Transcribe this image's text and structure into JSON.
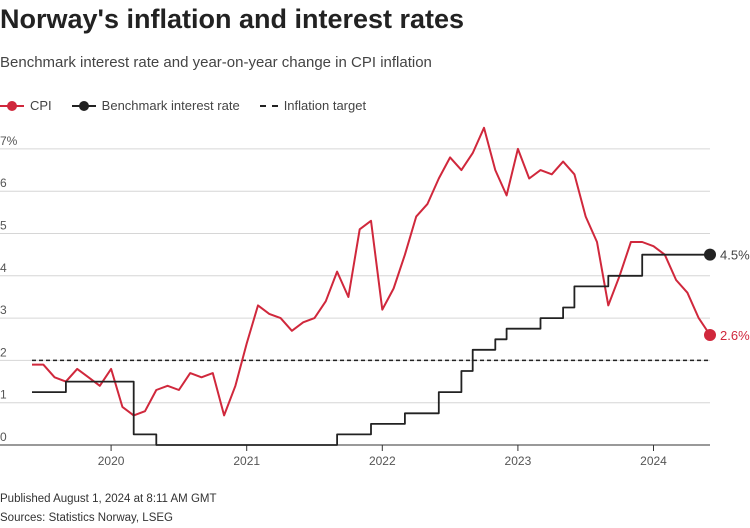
{
  "header": {
    "title": "Norway's inflation and interest rates",
    "subtitle": "Benchmark interest rate and year-on-year change in CPI inflation"
  },
  "legend": {
    "cpi": "CPI",
    "rate": "Benchmark interest rate",
    "target": "Inflation target"
  },
  "colors": {
    "cpi": "#d0283c",
    "rate": "#222222",
    "target": "#222222",
    "grid": "#d6d6d6",
    "label": "#555555"
  },
  "footer": {
    "published": "Published August 1, 2024 at 8:11 AM GMT",
    "sources": "Sources: Statistics Norway, LSEG"
  },
  "chart_data": {
    "type": "line",
    "title": "Norway's inflation and interest rates",
    "subtitle": "Benchmark interest rate and year-on-year change in CPI inflation",
    "xlabel": "",
    "ylabel": "",
    "xlim": [
      "2019-06",
      "2024-06"
    ],
    "ylim": [
      0,
      7
    ],
    "y_ticks": [
      0,
      1,
      2,
      3,
      4,
      5,
      6,
      7
    ],
    "y_tick_labels": [
      "0",
      "1",
      "2",
      "3",
      "4",
      "5",
      "6",
      "7%"
    ],
    "x_ticks": [
      "2020-01",
      "2021-01",
      "2022-01",
      "2023-01",
      "2024-01"
    ],
    "x_tick_labels": [
      "2020",
      "2021",
      "2022",
      "2023",
      "2024"
    ],
    "grid": true,
    "legend_position": "top-left",
    "reference_lines": [
      {
        "name": "Inflation target",
        "y": 2,
        "style": "dashed"
      }
    ],
    "end_labels": {
      "Benchmark interest rate": "4.5%",
      "CPI": "2.6%"
    },
    "series": [
      {
        "name": "CPI",
        "style": "line",
        "x": [
          "2019-06",
          "2019-07",
          "2019-08",
          "2019-09",
          "2019-10",
          "2019-11",
          "2019-12",
          "2020-01",
          "2020-02",
          "2020-03",
          "2020-04",
          "2020-05",
          "2020-06",
          "2020-07",
          "2020-08",
          "2020-09",
          "2020-10",
          "2020-11",
          "2020-12",
          "2021-01",
          "2021-02",
          "2021-03",
          "2021-04",
          "2021-05",
          "2021-06",
          "2021-07",
          "2021-08",
          "2021-09",
          "2021-10",
          "2021-11",
          "2021-12",
          "2022-01",
          "2022-02",
          "2022-03",
          "2022-04",
          "2022-05",
          "2022-06",
          "2022-07",
          "2022-08",
          "2022-09",
          "2022-10",
          "2022-11",
          "2022-12",
          "2023-01",
          "2023-02",
          "2023-03",
          "2023-04",
          "2023-05",
          "2023-06",
          "2023-07",
          "2023-08",
          "2023-09",
          "2023-10",
          "2023-11",
          "2023-12",
          "2024-01",
          "2024-02",
          "2024-03",
          "2024-04",
          "2024-05",
          "2024-06"
        ],
        "values": [
          1.9,
          1.9,
          1.6,
          1.5,
          1.8,
          1.6,
          1.4,
          1.8,
          0.9,
          0.7,
          0.8,
          1.3,
          1.4,
          1.3,
          1.7,
          1.6,
          1.7,
          0.7,
          1.4,
          2.4,
          3.3,
          3.1,
          3.0,
          2.7,
          2.9,
          3.0,
          3.4,
          4.1,
          3.5,
          5.1,
          5.3,
          3.2,
          3.7,
          4.5,
          5.4,
          5.7,
          6.3,
          6.8,
          6.5,
          6.9,
          7.5,
          6.5,
          5.9,
          7.0,
          6.3,
          6.5,
          6.4,
          6.7,
          6.4,
          5.4,
          4.8,
          3.3,
          4.0,
          4.8,
          4.8,
          4.7,
          4.5,
          3.9,
          3.6,
          3.0,
          2.6
        ]
      },
      {
        "name": "Benchmark interest rate",
        "style": "step",
        "x": [
          "2019-06",
          "2019-09",
          "2019-12",
          "2020-01",
          "2020-02",
          "2020-03",
          "2020-05",
          "2020-06",
          "2020-12",
          "2021-06",
          "2021-09",
          "2021-12",
          "2022-03",
          "2022-06",
          "2022-08",
          "2022-09",
          "2022-10",
          "2022-11",
          "2022-12",
          "2023-01",
          "2023-02",
          "2023-03",
          "2023-05",
          "2023-06",
          "2023-07",
          "2023-09",
          "2023-12",
          "2024-06"
        ],
        "values": [
          1.25,
          1.5,
          1.5,
          1.5,
          1.5,
          0.25,
          0.0,
          0.0,
          0.0,
          0.0,
          0.25,
          0.5,
          0.75,
          1.25,
          1.75,
          2.25,
          2.25,
          2.5,
          2.75,
          2.75,
          2.75,
          3.0,
          3.25,
          3.75,
          3.75,
          4.0,
          4.5,
          4.5
        ]
      }
    ]
  }
}
